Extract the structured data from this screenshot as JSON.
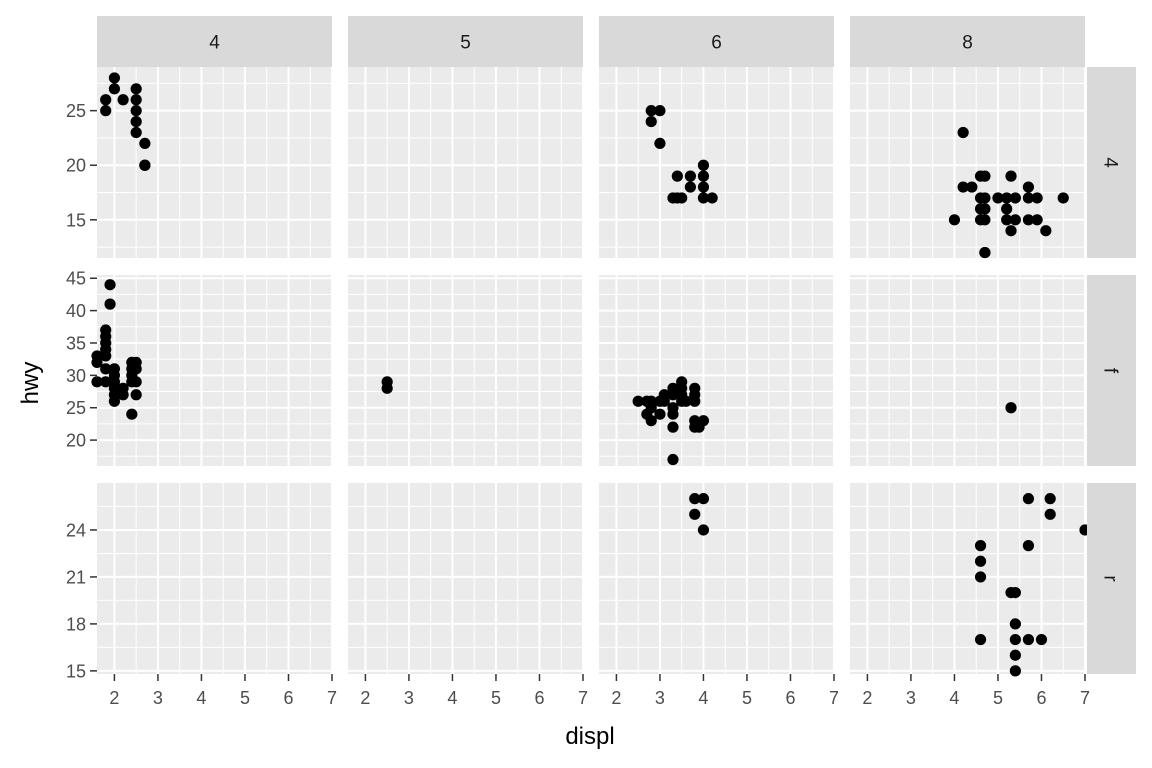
{
  "chart_data": {
    "type": "scatter",
    "facet_cols": {
      "variable": "cyl",
      "levels": [
        "4",
        "5",
        "6",
        "8"
      ]
    },
    "facet_rows": {
      "variable": "drv",
      "levels": [
        "4",
        "f",
        "r"
      ]
    },
    "xlabel": "displ",
    "ylabel": "hwy",
    "xlim": [
      1.6,
      7.0
    ],
    "x_ticks": [
      2,
      3,
      4,
      5,
      6,
      7
    ],
    "rows": [
      {
        "level": "4",
        "ylim": [
          11.5,
          29.0
        ],
        "y_ticks": [
          15,
          20,
          25
        ]
      },
      {
        "level": "f",
        "ylim": [
          16.0,
          45.5
        ],
        "y_ticks": [
          20,
          25,
          30,
          35,
          40,
          45
        ]
      },
      {
        "level": "r",
        "ylim": [
          14.8,
          27.0
        ],
        "y_ticks": [
          15,
          18,
          21,
          24
        ]
      }
    ],
    "points": {
      "4|4": [
        [
          1.8,
          26
        ],
        [
          1.8,
          25
        ],
        [
          2.0,
          28
        ],
        [
          2.0,
          27
        ],
        [
          2.2,
          26
        ],
        [
          2.5,
          27
        ],
        [
          2.5,
          26
        ],
        [
          2.5,
          25
        ],
        [
          2.5,
          24
        ],
        [
          2.5,
          23
        ],
        [
          2.7,
          22
        ],
        [
          2.7,
          20
        ],
        [
          2.7,
          20
        ]
      ],
      "4|5": [],
      "4|6": [
        [
          2.8,
          25
        ],
        [
          2.8,
          24
        ],
        [
          3.0,
          25
        ],
        [
          3.0,
          22
        ],
        [
          3.3,
          17
        ],
        [
          3.4,
          19
        ],
        [
          3.4,
          17
        ],
        [
          3.5,
          17
        ],
        [
          3.7,
          19
        ],
        [
          3.7,
          18
        ],
        [
          4.0,
          20
        ],
        [
          4.0,
          19
        ],
        [
          4.0,
          18
        ],
        [
          4.0,
          17
        ],
        [
          4.2,
          17
        ]
      ],
      "4|8": [
        [
          4.0,
          15
        ],
        [
          4.2,
          23
        ],
        [
          4.2,
          18
        ],
        [
          4.4,
          18
        ],
        [
          4.6,
          19
        ],
        [
          4.6,
          17
        ],
        [
          4.6,
          16
        ],
        [
          4.6,
          15
        ],
        [
          4.7,
          19
        ],
        [
          4.7,
          17
        ],
        [
          4.7,
          16
        ],
        [
          4.7,
          15
        ],
        [
          4.7,
          12
        ],
        [
          4.7,
          12
        ],
        [
          5.0,
          17
        ],
        [
          5.2,
          17
        ],
        [
          5.2,
          16
        ],
        [
          5.2,
          15
        ],
        [
          5.3,
          19
        ],
        [
          5.3,
          14
        ],
        [
          5.4,
          17
        ],
        [
          5.4,
          15
        ],
        [
          5.7,
          18
        ],
        [
          5.7,
          17
        ],
        [
          5.7,
          15
        ],
        [
          5.9,
          17
        ],
        [
          5.9,
          15
        ],
        [
          6.1,
          14
        ],
        [
          6.5,
          17
        ]
      ],
      "f|4": [
        [
          1.6,
          33
        ],
        [
          1.6,
          32
        ],
        [
          1.6,
          29
        ],
        [
          1.8,
          37
        ],
        [
          1.8,
          36
        ],
        [
          1.8,
          35
        ],
        [
          1.8,
          34
        ],
        [
          1.8,
          33
        ],
        [
          1.8,
          31
        ],
        [
          1.8,
          29
        ],
        [
          1.9,
          44
        ],
        [
          1.9,
          41
        ],
        [
          2.0,
          31
        ],
        [
          2.0,
          30
        ],
        [
          2.0,
          29
        ],
        [
          2.0,
          28
        ],
        [
          2.0,
          27
        ],
        [
          2.0,
          26
        ],
        [
          2.2,
          28
        ],
        [
          2.2,
          27
        ],
        [
          2.4,
          32
        ],
        [
          2.4,
          31
        ],
        [
          2.4,
          30
        ],
        [
          2.4,
          29
        ],
        [
          2.4,
          24
        ],
        [
          2.5,
          32
        ],
        [
          2.5,
          31
        ],
        [
          2.5,
          29
        ],
        [
          2.5,
          27
        ]
      ],
      "f|5": [
        [
          2.5,
          29
        ],
        [
          2.5,
          28
        ]
      ],
      "f|6": [
        [
          2.5,
          26
        ],
        [
          2.7,
          26
        ],
        [
          2.7,
          24
        ],
        [
          2.8,
          26
        ],
        [
          2.8,
          25
        ],
        [
          2.8,
          23
        ],
        [
          3.0,
          26
        ],
        [
          3.0,
          24
        ],
        [
          3.1,
          27
        ],
        [
          3.1,
          26
        ],
        [
          3.3,
          28
        ],
        [
          3.3,
          27
        ],
        [
          3.3,
          25
        ],
        [
          3.3,
          24
        ],
        [
          3.3,
          22
        ],
        [
          3.3,
          17
        ],
        [
          3.5,
          29
        ],
        [
          3.5,
          28
        ],
        [
          3.5,
          27
        ],
        [
          3.5,
          26
        ],
        [
          3.6,
          26
        ],
        [
          3.8,
          28
        ],
        [
          3.8,
          27
        ],
        [
          3.8,
          26
        ],
        [
          3.8,
          23
        ],
        [
          3.8,
          22
        ],
        [
          3.9,
          22
        ],
        [
          4.0,
          23
        ]
      ],
      "f|8": [
        [
          5.3,
          25
        ]
      ],
      "r|4": [],
      "r|5": [],
      "r|6": [
        [
          3.8,
          26
        ],
        [
          3.8,
          25
        ],
        [
          4.0,
          26
        ],
        [
          4.0,
          24
        ]
      ],
      "r|8": [
        [
          4.6,
          23
        ],
        [
          4.6,
          22
        ],
        [
          4.6,
          21
        ],
        [
          4.6,
          17
        ],
        [
          5.3,
          20
        ],
        [
          5.4,
          20
        ],
        [
          5.4,
          18
        ],
        [
          5.4,
          17
        ],
        [
          5.4,
          16
        ],
        [
          5.4,
          15
        ],
        [
          5.7,
          26
        ],
        [
          5.7,
          23
        ],
        [
          5.7,
          17
        ],
        [
          6.0,
          17
        ],
        [
          6.2,
          26
        ],
        [
          6.2,
          25
        ],
        [
          7.0,
          24
        ]
      ]
    }
  },
  "colors": {
    "panel_background": "#ebebeb",
    "grid_major": "#ffffff",
    "strip_background": "#d9d9d9",
    "point": "#000000",
    "tick_text": "#4d4d4d",
    "axis_title": "#000000"
  }
}
